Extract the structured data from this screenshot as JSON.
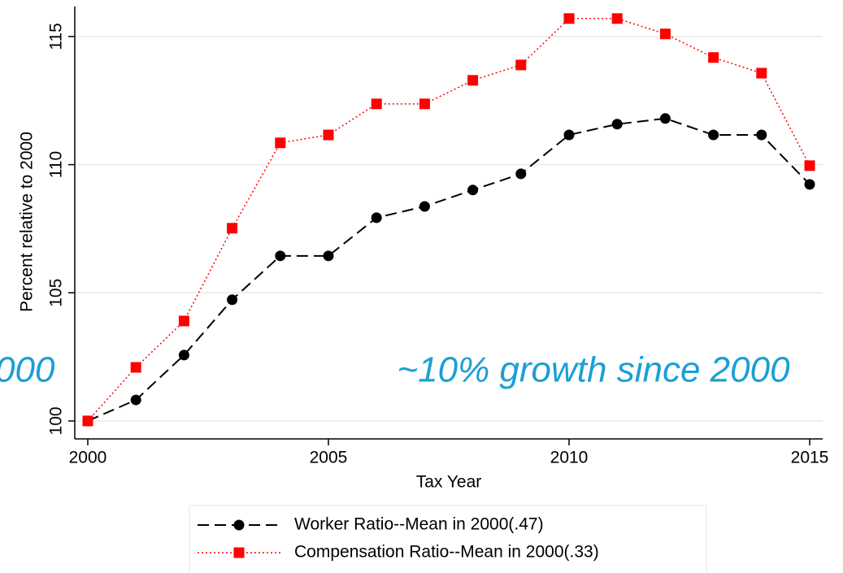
{
  "chart_data": {
    "type": "line",
    "x_label": "Tax Year",
    "y_label": "Percent relative to 2000",
    "x": [
      2000,
      2001,
      2002,
      2003,
      2004,
      2005,
      2006,
      2007,
      2008,
      2009,
      2010,
      2011,
      2012,
      2013,
      2014,
      2015
    ],
    "series": [
      {
        "name": "Worker Ratio--Mean in 2000(.47)",
        "color": "#000000",
        "dash": "dashed",
        "marker": "circle",
        "values": [
          100,
          100.82,
          102.57,
          104.73,
          106.44,
          106.44,
          107.93,
          108.37,
          109.01,
          109.64,
          111.16,
          111.58,
          111.8,
          111.16,
          111.16,
          109.23
        ]
      },
      {
        "name": "Compensation Ratio--Mean in 2000(.33)",
        "color": "#ff0000",
        "dash": "dotted",
        "marker": "square",
        "values": [
          100,
          102.09,
          103.9,
          107.52,
          110.85,
          111.16,
          112.37,
          112.37,
          113.29,
          113.89,
          115.7,
          115.7,
          115.1,
          114.18,
          113.57,
          109.96
        ]
      }
    ],
    "xlim": [
      1999.73,
      2015.27
    ],
    "ylim": [
      99.3,
      116.17
    ],
    "xticks": [
      2000,
      2005,
      2010,
      2015
    ],
    "yticks": [
      100,
      105,
      110,
      115
    ],
    "grid": true,
    "legend": "bottom",
    "annotations": [
      "~10% growth since 2000",
      "000"
    ]
  }
}
